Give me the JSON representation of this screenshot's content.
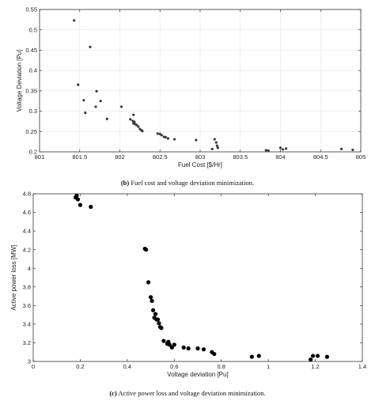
{
  "chart_data": [
    {
      "type": "scatter",
      "panel": "b",
      "caption_letter": "(b)",
      "caption_text": "Fuel cost and voltage deviation minimization.",
      "xlabel": "Fuel Cost [$/Hr]",
      "ylabel": "Voltage Deviation [Pu]",
      "xlim": [
        801,
        805
      ],
      "ylim": [
        0.2,
        0.55
      ],
      "xticks": [
        "801",
        "801.5",
        "802",
        "802.5",
        "803",
        "803.5",
        "804",
        "804.5",
        "805"
      ],
      "yticks": [
        "0.2",
        "0.25",
        "0.3",
        "0.35",
        "0.4",
        "0.45",
        "0.5",
        "0.55"
      ],
      "grid": true,
      "marker_color": "#3a3a3a",
      "points": [
        [
          801.43,
          0.523
        ],
        [
          801.63,
          0.458
        ],
        [
          801.48,
          0.365
        ],
        [
          801.71,
          0.349
        ],
        [
          801.55,
          0.327
        ],
        [
          801.76,
          0.325
        ],
        [
          801.7,
          0.311
        ],
        [
          801.57,
          0.296
        ],
        [
          802.02,
          0.311
        ],
        [
          801.84,
          0.281
        ],
        [
          802.17,
          0.291
        ],
        [
          802.13,
          0.28
        ],
        [
          802.16,
          0.276
        ],
        [
          802.18,
          0.274
        ],
        [
          802.19,
          0.268
        ],
        [
          802.21,
          0.266
        ],
        [
          802.17,
          0.27
        ],
        [
          802.23,
          0.262
        ],
        [
          802.25,
          0.256
        ],
        [
          802.27,
          0.253
        ],
        [
          802.28,
          0.251
        ],
        [
          802.47,
          0.245
        ],
        [
          802.5,
          0.244
        ],
        [
          802.52,
          0.241
        ],
        [
          802.55,
          0.237
        ],
        [
          802.57,
          0.236
        ],
        [
          802.6,
          0.233
        ],
        [
          802.68,
          0.231
        ],
        [
          802.95,
          0.229
        ],
        [
          803.18,
          0.231
        ],
        [
          803.2,
          0.223
        ],
        [
          803.21,
          0.215
        ],
        [
          803.22,
          0.21
        ],
        [
          803.15,
          0.207
        ],
        [
          803.82,
          0.204
        ],
        [
          803.85,
          0.203
        ],
        [
          804.0,
          0.21
        ],
        [
          804.03,
          0.206
        ],
        [
          804.07,
          0.208
        ],
        [
          804.76,
          0.207
        ],
        [
          804.9,
          0.205
        ]
      ]
    },
    {
      "type": "scatter",
      "panel": "c",
      "caption_letter": "(c)",
      "caption_text": "Active power loss and voltage deviation minimization.",
      "xlabel": "Voltage deviation [Pu]",
      "ylabel": "Active power loss [MW]",
      "xlim": [
        0,
        1.4
      ],
      "ylim": [
        3,
        4.8
      ],
      "xticks": [
        "0",
        "0.2",
        "0.4",
        "0.6",
        "0.8",
        "1",
        "1.2",
        "1.4"
      ],
      "yticks": [
        "3",
        "3.2",
        "3.4",
        "3.6",
        "3.8",
        "4",
        "4.2",
        "4.4",
        "4.6",
        "4.8"
      ],
      "grid": false,
      "marker_color": "#000000",
      "points": [
        [
          0.18,
          4.76
        ],
        [
          0.185,
          4.78
        ],
        [
          0.19,
          4.74
        ],
        [
          0.2,
          4.68
        ],
        [
          0.245,
          4.66
        ],
        [
          0.475,
          4.21
        ],
        [
          0.48,
          4.2
        ],
        [
          0.49,
          3.85
        ],
        [
          0.5,
          3.69
        ],
        [
          0.505,
          3.65
        ],
        [
          0.51,
          3.55
        ],
        [
          0.515,
          3.47
        ],
        [
          0.52,
          3.51
        ],
        [
          0.525,
          3.45
        ],
        [
          0.53,
          3.45
        ],
        [
          0.535,
          3.41
        ],
        [
          0.54,
          3.37
        ],
        [
          0.545,
          3.36
        ],
        [
          0.555,
          3.22
        ],
        [
          0.57,
          3.19
        ],
        [
          0.575,
          3.21
        ],
        [
          0.58,
          3.18
        ],
        [
          0.59,
          3.15
        ],
        [
          0.6,
          3.18
        ],
        [
          0.64,
          3.15
        ],
        [
          0.66,
          3.14
        ],
        [
          0.7,
          3.14
        ],
        [
          0.725,
          3.13
        ],
        [
          0.76,
          3.1
        ],
        [
          0.77,
          3.08
        ],
        [
          0.93,
          3.05
        ],
        [
          0.96,
          3.06
        ],
        [
          1.18,
          3.02
        ],
        [
          1.19,
          3.06
        ],
        [
          1.21,
          3.06
        ],
        [
          1.25,
          3.05
        ]
      ]
    }
  ]
}
